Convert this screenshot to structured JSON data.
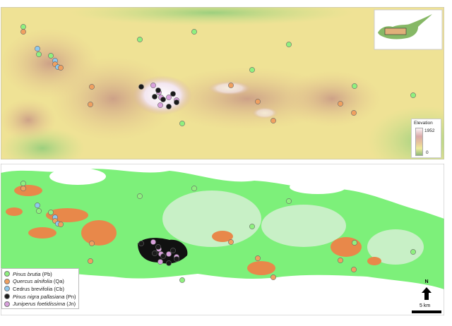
{
  "species": [
    {
      "code": "Pb",
      "italic": "Pinus brutia",
      "suffix": "(Pb)",
      "color": "#8ff07f"
    },
    {
      "code": "Qa",
      "italic": "Quercus alnifolia",
      "suffix": "(Qa)",
      "color": "#f0a060"
    },
    {
      "code": "Cb",
      "italic": "",
      "suffix": "Cedrus brevifolia (Cb)",
      "color": "#8ec8ee"
    },
    {
      "code": "Pn",
      "italic": "Pinus nigra pallasiana",
      "suffix": "(Pn)",
      "color": "#1a1a1a"
    },
    {
      "code": "Jn",
      "italic": "Juniperus foetidissima",
      "suffix": "(Jn)",
      "color": "#d8a0dc"
    }
  ],
  "elevation_legend": {
    "title": "Elevation",
    "max": "1952",
    "min": "0"
  },
  "north_label": "N",
  "scale_label": "5 km",
  "colors": {
    "forest_green": "#7df07a",
    "light_green": "#c8f0c6",
    "orange_patch": "#e8884a",
    "black_patch": "#111111",
    "terrain_base": "#efe295"
  }
}
